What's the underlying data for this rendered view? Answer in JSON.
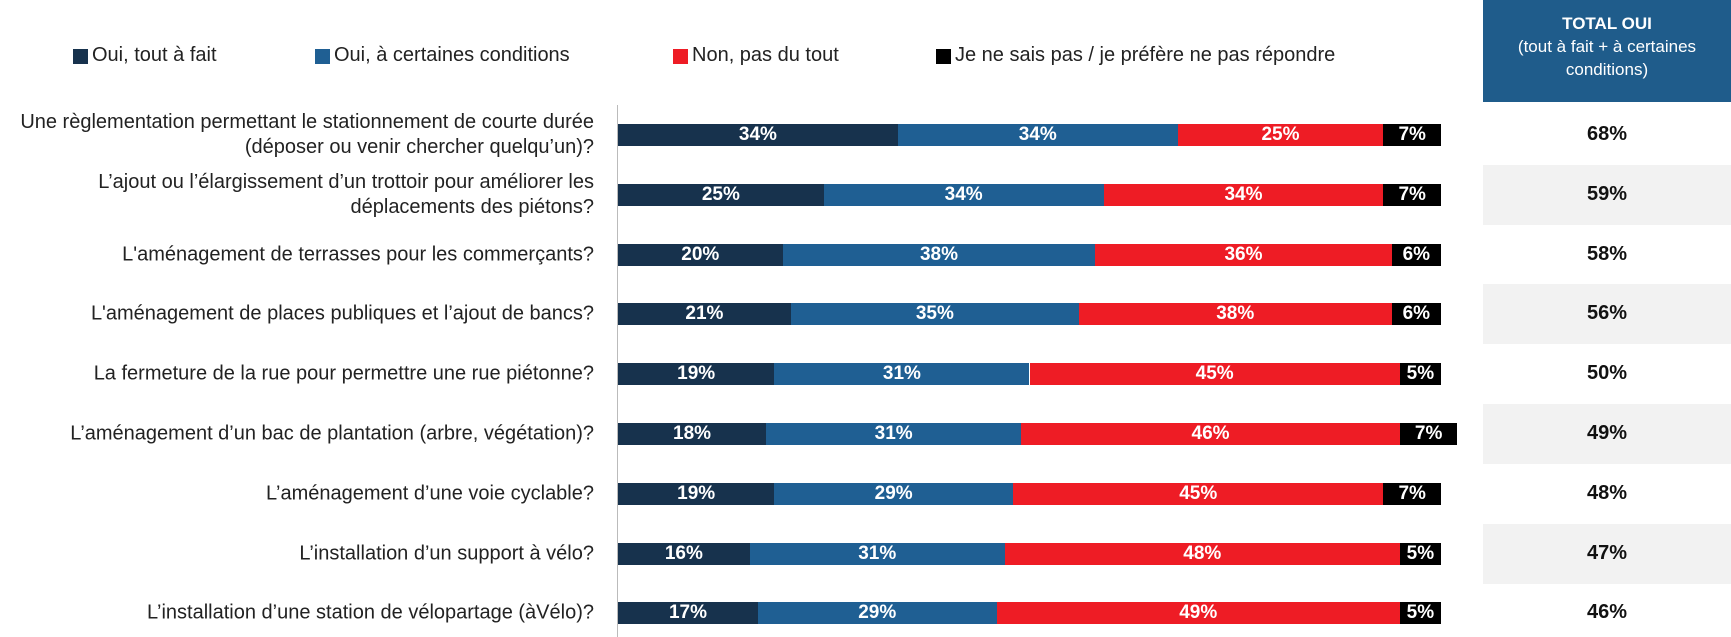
{
  "chart_data": {
    "type": "stacked-bar-horizontal",
    "categories": [
      "Une règlementation permettant le stationnement de courte durée (déposer ou venir chercher quelqu’un)?",
      "L’ajout ou l’élargissement d’un trottoir pour améliorer les déplacements des piétons?",
      "L'aménagement de terrasses pour les commerçants?",
      "L'aménagement de places publiques et l’ajout de bancs?",
      "La fermeture de la rue pour permettre une rue piétonne?",
      "L’aménagement d’un bac de plantation (arbre, végétation)?",
      "L’aménagement d’une voie cyclable?",
      "L’installation d’un support à vélo?",
      "L’installation d’une station de vélopartage (àVélo)?"
    ],
    "series": [
      {
        "name": "Oui, tout à fait",
        "color": "#17324d",
        "values": [
          34,
          25,
          20,
          21,
          19,
          18,
          19,
          16,
          17
        ],
        "value_labels": [
          "34%",
          "25%",
          "20%",
          "21%",
          "19%",
          "18%",
          "19%",
          "16%",
          "17%"
        ]
      },
      {
        "name": "Oui, à certaines conditions",
        "color": "#1f5f93",
        "values": [
          34,
          34,
          38,
          35,
          31,
          31,
          29,
          31,
          29
        ],
        "value_labels": [
          "34%",
          "34%",
          "38%",
          "35%",
          "31%",
          "31%",
          "29%",
          "31%",
          "29%"
        ]
      },
      {
        "name": "Non, pas du tout",
        "color": "#ee1c25",
        "values": [
          25,
          34,
          36,
          38,
          45,
          46,
          45,
          48,
          49
        ],
        "value_labels": [
          "25%",
          "34%",
          "36%",
          "38%",
          "45%",
          "46%",
          "45%",
          "48%",
          "49%"
        ]
      },
      {
        "name": "Je ne sais pas / je préfère ne pas répondre",
        "color": "#000000",
        "values": [
          7,
          7,
          6,
          6,
          5,
          7,
          7,
          5,
          5
        ],
        "value_labels": [
          "7%",
          "7%",
          "6%",
          "6%",
          "5%",
          "7%",
          "7%",
          "5%",
          "5%"
        ]
      }
    ],
    "xlim": [
      0,
      100
    ],
    "totals": {
      "title": "TOTAL OUI",
      "subtitle": "(tout à fait + à certaines conditions)",
      "color": "#1f5c8b",
      "values": [
        68,
        59,
        58,
        56,
        50,
        49,
        48,
        47,
        46
      ],
      "value_labels": [
        "68%",
        "59%",
        "58%",
        "56%",
        "50%",
        "49%",
        "48%",
        "47%",
        "46%"
      ]
    }
  }
}
